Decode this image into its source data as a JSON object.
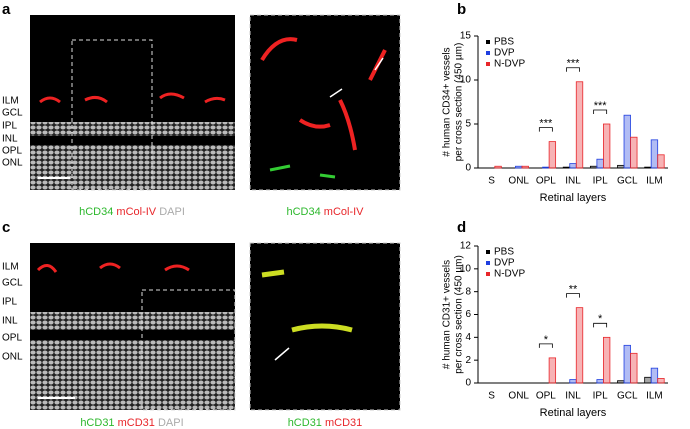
{
  "panels": [
    {
      "letter": "a",
      "layers": [
        "ILM",
        "GCL",
        "IPL",
        "INL",
        "OPL",
        "ONL"
      ],
      "captions": [
        [
          "hCD34",
          "mCol-IV",
          "DAPI"
        ],
        [
          "hCD34",
          "mCol-IV"
        ]
      ]
    },
    {
      "letter": "c",
      "layers": [
        "ILM",
        "GCL",
        "IPL",
        "INL",
        "OPL",
        "ONL"
      ],
      "captions": [
        [
          "hCD31",
          "mCD31",
          "DAPI"
        ],
        [
          "hCD31",
          "mCD31"
        ]
      ]
    }
  ],
  "chart_data": [
    {
      "type": "bar",
      "panel_label": "b",
      "ylabel": [
        "# human CD34+ vessels",
        "per cross section (450 µm)"
      ],
      "xlabel": "Retinal layers",
      "categories": [
        "S",
        "ONL",
        "OPL",
        "INL",
        "IPL",
        "GCL",
        "ILM"
      ],
      "series": [
        {
          "name": "PBS",
          "color": "#000000",
          "values": [
            0,
            0,
            0,
            0.1,
            0.2,
            0.3,
            0.1
          ]
        },
        {
          "name": "DVP",
          "color": "#1f3fe0",
          "values": [
            0,
            0.2,
            0.1,
            0.5,
            1,
            6,
            3.2
          ]
        },
        {
          "name": "N-DVP",
          "color": "#e8262a",
          "values": [
            0.2,
            0.2,
            3,
            9.8,
            5,
            3.5,
            1.5
          ]
        }
      ],
      "annotations": [
        {
          "label": "***",
          "category": "OPL"
        },
        {
          "label": "***",
          "category": "INL"
        },
        {
          "label": "***",
          "category": "IPL"
        }
      ],
      "ylim": [
        0,
        15
      ],
      "yticks": [
        0,
        5,
        10,
        15
      ],
      "legend": "upper left"
    },
    {
      "type": "bar",
      "panel_label": "d",
      "ylabel": [
        "# human CD31+ vessels",
        "per cross section (450 µm)"
      ],
      "xlabel": "Retinal layers",
      "categories": [
        "S",
        "ONL",
        "OPL",
        "INL",
        "IPL",
        "GCL",
        "ILM"
      ],
      "series": [
        {
          "name": "PBS",
          "color": "#000000",
          "values": [
            0,
            0,
            0,
            0,
            0,
            0.2,
            0.5
          ]
        },
        {
          "name": "DVP",
          "color": "#1f3fe0",
          "values": [
            0,
            0,
            0,
            0.3,
            0.3,
            3.3,
            1.3
          ]
        },
        {
          "name": "N-DVP",
          "color": "#e8262a",
          "values": [
            0,
            0,
            2.2,
            6.6,
            4,
            2.6,
            0.4
          ]
        }
      ],
      "annotations": [
        {
          "label": "*",
          "category": "OPL"
        },
        {
          "label": "**",
          "category": "INL"
        },
        {
          "label": "*",
          "category": "IPL"
        }
      ],
      "ylim": [
        0,
        12
      ],
      "yticks": [
        0,
        2,
        4,
        6,
        8,
        10,
        12
      ],
      "legend": "upper left"
    }
  ]
}
